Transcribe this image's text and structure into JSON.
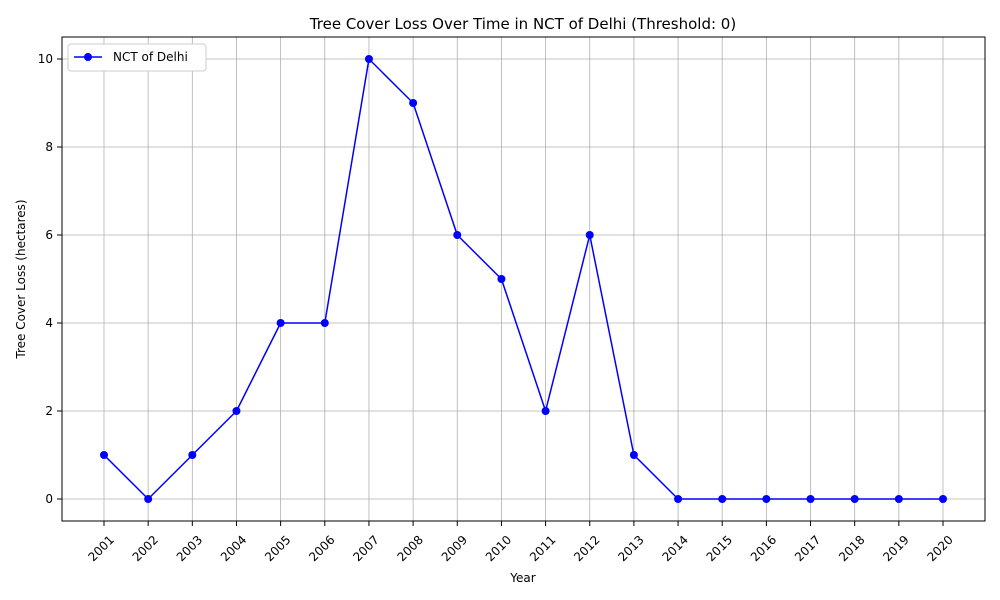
{
  "chart_data": {
    "type": "line",
    "title": "Tree Cover Loss Over Time in NCT of Delhi (Threshold: 0)",
    "xlabel": "Year",
    "ylabel": "Tree Cover Loss (hectares)",
    "x": [
      "2001",
      "2002",
      "2003",
      "2004",
      "2005",
      "2006",
      "2007",
      "2008",
      "2009",
      "2010",
      "2011",
      "2012",
      "2013",
      "2014",
      "2015",
      "2016",
      "2017",
      "2018",
      "2019",
      "2020"
    ],
    "series": [
      {
        "name": "NCT of Delhi",
        "values": [
          1,
          0,
          1,
          2,
          4,
          4,
          10,
          9,
          6,
          5,
          2,
          6,
          1,
          0,
          0,
          0,
          0,
          0,
          0,
          0
        ],
        "color": "#0000ff",
        "marker": "circle"
      }
    ],
    "yticks": [
      "0",
      "2",
      "4",
      "6",
      "8",
      "10"
    ],
    "ylim": [
      -0.5,
      10.5
    ],
    "grid": true,
    "legend_position": "top-left"
  }
}
